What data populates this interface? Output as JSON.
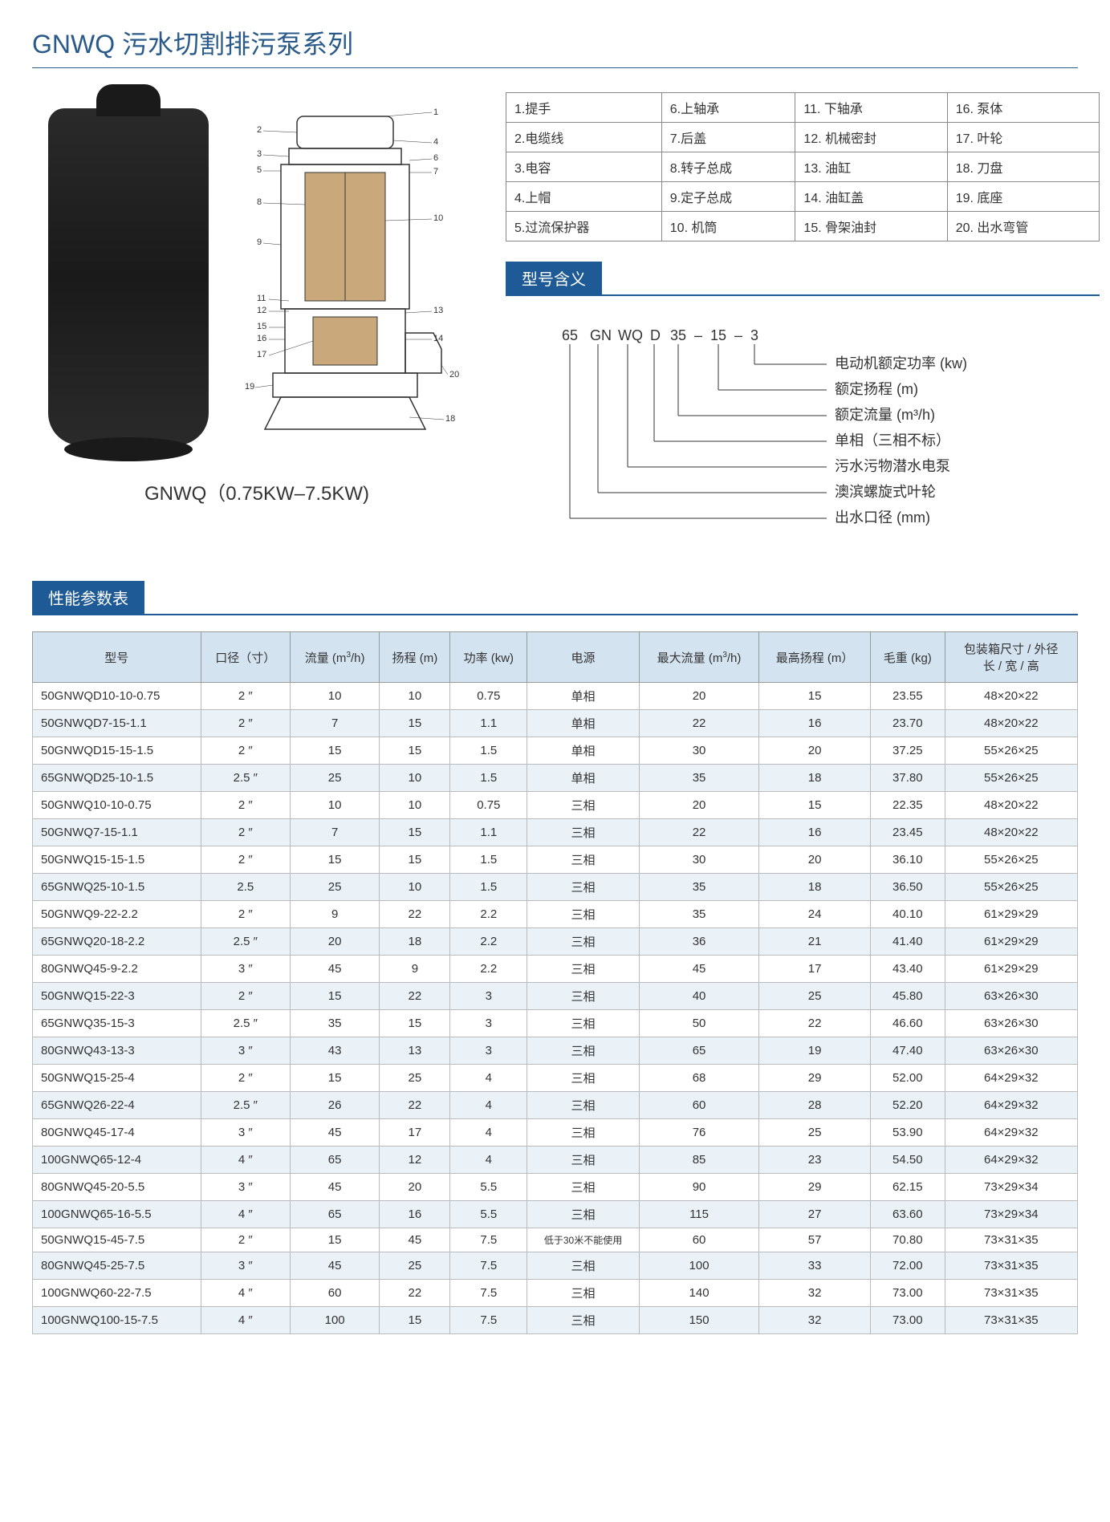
{
  "title": "GNWQ 污水切割排污泵系列",
  "caption": "GNWQ（0.75KW–7.5KW)",
  "parts": [
    [
      "1.提手",
      "6.上轴承",
      "11. 下轴承",
      "16. 泵体"
    ],
    [
      "2.电缆线",
      "7.后盖",
      "12. 机械密封",
      "17. 叶轮"
    ],
    [
      "3.电容",
      "8.转子总成",
      "13. 油缸",
      "18. 刀盘"
    ],
    [
      "4.上帽",
      "9.定子总成",
      "14. 油缸盖",
      "19. 底座"
    ],
    [
      "5.过流保护器",
      "10. 机筒",
      "15. 骨架油封",
      "20. 出水弯管"
    ]
  ],
  "model_header": "型号含义",
  "model_code": [
    "65",
    "GN",
    "WQ",
    "D",
    "35",
    "–",
    "15",
    "–",
    "3"
  ],
  "model_explanations": [
    "电动机额定功率 (kw)",
    "额定扬程 (m)",
    "额定流量 (m³/h)",
    "单相（三相不标）",
    "污水污物潜水电泵",
    "澳滨螺旋式叶轮",
    "出水口径 (mm)"
  ],
  "spec_header": "性能参数表",
  "spec_columns": [
    "型号",
    "口径（寸）",
    "流量 (m³/h)",
    "扬程 (m)",
    "功率 (kw)",
    "电源",
    "最大流量 (m³/h)",
    "最高扬程 (m）",
    "毛重 (kg)",
    "包装箱尺寸 / 外径\n长 / 宽 / 高"
  ],
  "spec_rows": [
    [
      "50GNWQD10-10-0.75",
      "2 ″",
      "10",
      "10",
      "0.75",
      "单相",
      "20",
      "15",
      "23.55",
      "48×20×22"
    ],
    [
      "50GNWQD7-15-1.1",
      "2 ″",
      "7",
      "15",
      "1.1",
      "单相",
      "22",
      "16",
      "23.70",
      "48×20×22"
    ],
    [
      "50GNWQD15-15-1.5",
      "2 ″",
      "15",
      "15",
      "1.5",
      "单相",
      "30",
      "20",
      "37.25",
      "55×26×25"
    ],
    [
      "65GNWQD25-10-1.5",
      "2.5 ″",
      "25",
      "10",
      "1.5",
      "单相",
      "35",
      "18",
      "37.80",
      "55×26×25"
    ],
    [
      "50GNWQ10-10-0.75",
      "2 ″",
      "10",
      "10",
      "0.75",
      "三相",
      "20",
      "15",
      "22.35",
      "48×20×22"
    ],
    [
      "50GNWQ7-15-1.1",
      "2 ″",
      "7",
      "15",
      "1.1",
      "三相",
      "22",
      "16",
      "23.45",
      "48×20×22"
    ],
    [
      "50GNWQ15-15-1.5",
      "2 ″",
      "15",
      "15",
      "1.5",
      "三相",
      "30",
      "20",
      "36.10",
      "55×26×25"
    ],
    [
      "65GNWQ25-10-1.5",
      "2.5",
      "25",
      "10",
      "1.5",
      "三相",
      "35",
      "18",
      "36.50",
      "55×26×25"
    ],
    [
      "50GNWQ9-22-2.2",
      "2 ″",
      "9",
      "22",
      "2.2",
      "三相",
      "35",
      "24",
      "40.10",
      "61×29×29"
    ],
    [
      "65GNWQ20-18-2.2",
      "2.5 ″",
      "20",
      "18",
      "2.2",
      "三相",
      "36",
      "21",
      "41.40",
      "61×29×29"
    ],
    [
      "80GNWQ45-9-2.2",
      "3 ″",
      "45",
      "9",
      "2.2",
      "三相",
      "45",
      "17",
      "43.40",
      "61×29×29"
    ],
    [
      "50GNWQ15-22-3",
      "2 ″",
      "15",
      "22",
      "3",
      "三相",
      "40",
      "25",
      "45.80",
      "63×26×30"
    ],
    [
      "65GNWQ35-15-3",
      "2.5 ″",
      "35",
      "15",
      "3",
      "三相",
      "50",
      "22",
      "46.60",
      "63×26×30"
    ],
    [
      "80GNWQ43-13-3",
      "3 ″",
      "43",
      "13",
      "3",
      "三相",
      "65",
      "19",
      "47.40",
      "63×26×30"
    ],
    [
      "50GNWQ15-25-4",
      "2 ″",
      "15",
      "25",
      "4",
      "三相",
      "68",
      "29",
      "52.00",
      "64×29×32"
    ],
    [
      "65GNWQ26-22-4",
      "2.5 ″",
      "26",
      "22",
      "4",
      "三相",
      "60",
      "28",
      "52.20",
      "64×29×32"
    ],
    [
      "80GNWQ45-17-4",
      "3 ″",
      "45",
      "17",
      "4",
      "三相",
      "76",
      "25",
      "53.90",
      "64×29×32"
    ],
    [
      "100GNWQ65-12-4",
      "4 ″",
      "65",
      "12",
      "4",
      "三相",
      "85",
      "23",
      "54.50",
      "64×29×32"
    ],
    [
      "80GNWQ45-20-5.5",
      "3 ″",
      "45",
      "20",
      "5.5",
      "三相",
      "90",
      "29",
      "62.15",
      "73×29×34"
    ],
    [
      "100GNWQ65-16-5.5",
      "4 ″",
      "65",
      "16",
      "5.5",
      "三相",
      "115",
      "27",
      "63.60",
      "73×29×34"
    ],
    [
      "50GNWQ15-45-7.5",
      "2 ″",
      "15",
      "45",
      "7.5",
      "低于30米不能使用",
      "60",
      "57",
      "70.80",
      "73×31×35"
    ],
    [
      "80GNWQ45-25-7.5",
      "3 ″",
      "45",
      "25",
      "7.5",
      "三相",
      "100",
      "33",
      "72.00",
      "73×31×35"
    ],
    [
      "100GNWQ60-22-7.5",
      "4 ″",
      "60",
      "22",
      "7.5",
      "三相",
      "140",
      "32",
      "73.00",
      "73×31×35"
    ],
    [
      "100GNWQ100-15-7.5",
      "4 ″",
      "100",
      "15",
      "7.5",
      "三相",
      "150",
      "32",
      "73.00",
      "73×31×35"
    ]
  ],
  "colors": {
    "primary": "#1e5a96",
    "header_bg": "#d4e3f0",
    "row_alt": "#eaf1f7"
  }
}
